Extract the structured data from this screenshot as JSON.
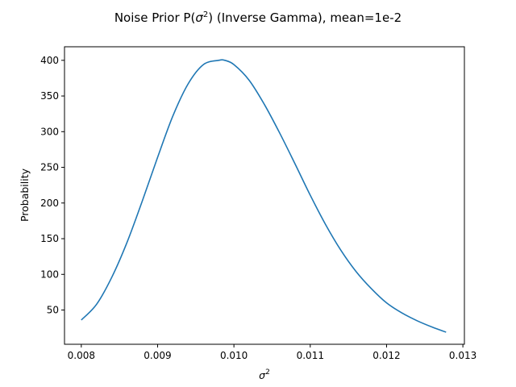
{
  "chart_data": {
    "type": "line",
    "title": "Noise Prior P(σ²) (Inverse Gamma), mean=1e-2",
    "title_parts": {
      "prefix": "Noise Prior P(",
      "symbol": "σ",
      "superscript": "2",
      "suffix": ") (Inverse Gamma), mean=1e-2"
    },
    "xlabel": "σ²",
    "xlabel_parts": {
      "symbol": "σ",
      "superscript": "2"
    },
    "ylabel": "Probability",
    "xlim": [
      0.00778,
      0.01302
    ],
    "ylim": [
      2,
      419
    ],
    "xticks": [
      0.008,
      0.009,
      0.01,
      0.011,
      0.012,
      0.013
    ],
    "xtick_labels": [
      "0.008",
      "0.009",
      "0.010",
      "0.011",
      "0.012",
      "0.013"
    ],
    "yticks": [
      50,
      100,
      150,
      200,
      250,
      300,
      350,
      400
    ],
    "ytick_labels": [
      "50",
      "100",
      "150",
      "200",
      "250",
      "300",
      "350",
      "400"
    ],
    "grid": false,
    "line_color": "#1f77b4",
    "series": [
      {
        "x": [
          0.008,
          0.0082,
          0.0084,
          0.0086,
          0.0088,
          0.009,
          0.0092,
          0.0094,
          0.0096,
          0.0098,
          0.00988,
          0.01,
          0.0102,
          0.0104,
          0.0106,
          0.0108,
          0.011,
          0.0112,
          0.0114,
          0.0116,
          0.0118,
          0.012,
          0.0122,
          0.0124,
          0.0126,
          0.01278
        ],
        "y": [
          36,
          58,
          96,
          145,
          203,
          264,
          322,
          367,
          394,
          400,
          400,
          394,
          372,
          338,
          298,
          255,
          211,
          170,
          134,
          104,
          80,
          60,
          46,
          35,
          26,
          19
        ]
      }
    ]
  }
}
